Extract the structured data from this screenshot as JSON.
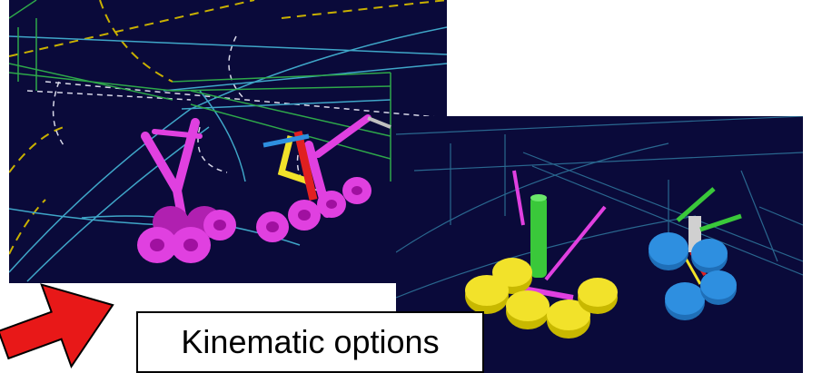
{
  "caption": {
    "text": "Kinematic options"
  },
  "colors": {
    "viewport_background": "#0a0a3a",
    "wireframe_green": "#2ea84a",
    "wireframe_cyan": "#3fa6c8",
    "wireframe_yellow": "#c8b000",
    "wireframe_white": "#d8d8e8",
    "wheels_magenta": "#e040e0",
    "wheels_yellow": "#f2e22a",
    "wheels_blue": "#2e8fe0",
    "strut_green": "#3ac83a",
    "strut_red": "#e02020",
    "arrow_red": "#e81818"
  },
  "icons": {
    "arrow": "right-arrow-icon"
  }
}
